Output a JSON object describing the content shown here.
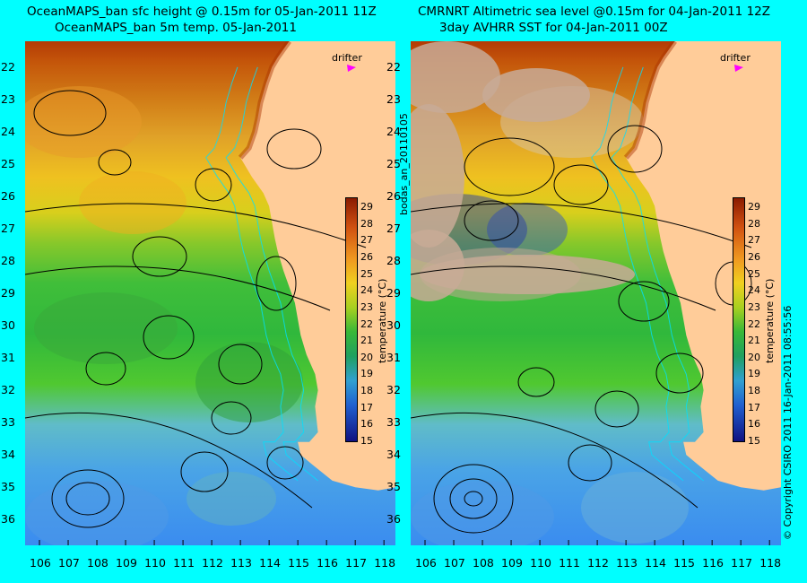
{
  "titles": {
    "left_line1": "OceanMAPS_ban sfc height @ 0.15m for 05-Jan-2011 11Z",
    "left_line2": "OceanMAPS_ban 5m temp. 05-Jan-2011",
    "right_line1": "CMRNRT Altimetric sea level  @0.15m  for 04-Jan-2011 12Z",
    "right_line2": "3day AVHRR SST for 04-Jan-2011 00Z"
  },
  "drifter_label": "drifter",
  "id_text": "bodas_an_20110105",
  "copyright_text": "© Copyright CSIRO 2011   16-Jan-2011 08:55:56",
  "axes": {
    "longitudes": [
      106,
      107,
      108,
      109,
      110,
      111,
      112,
      113,
      114,
      115,
      116,
      117,
      118
    ],
    "latitudes": [
      22,
      23,
      24,
      25,
      26,
      27,
      28,
      29,
      30,
      31,
      32,
      33,
      34,
      35,
      36
    ],
    "lon_range": [
      105.5,
      118.4
    ],
    "lat_range": [
      21.2,
      36.8
    ]
  },
  "colorbar": {
    "title": "temperature (°C)",
    "ticks": [
      29,
      28,
      27,
      26,
      25,
      24,
      23,
      22,
      21,
      20,
      19,
      18,
      17,
      16,
      15
    ],
    "range": [
      15,
      29.6
    ]
  },
  "colors": {
    "background": "#00ffff",
    "land": "#ffcc99",
    "cloud": "#c8aa96",
    "drifter": "#ff00ff",
    "contour": "#000000",
    "bathymetry": "#00e0ff"
  }
}
